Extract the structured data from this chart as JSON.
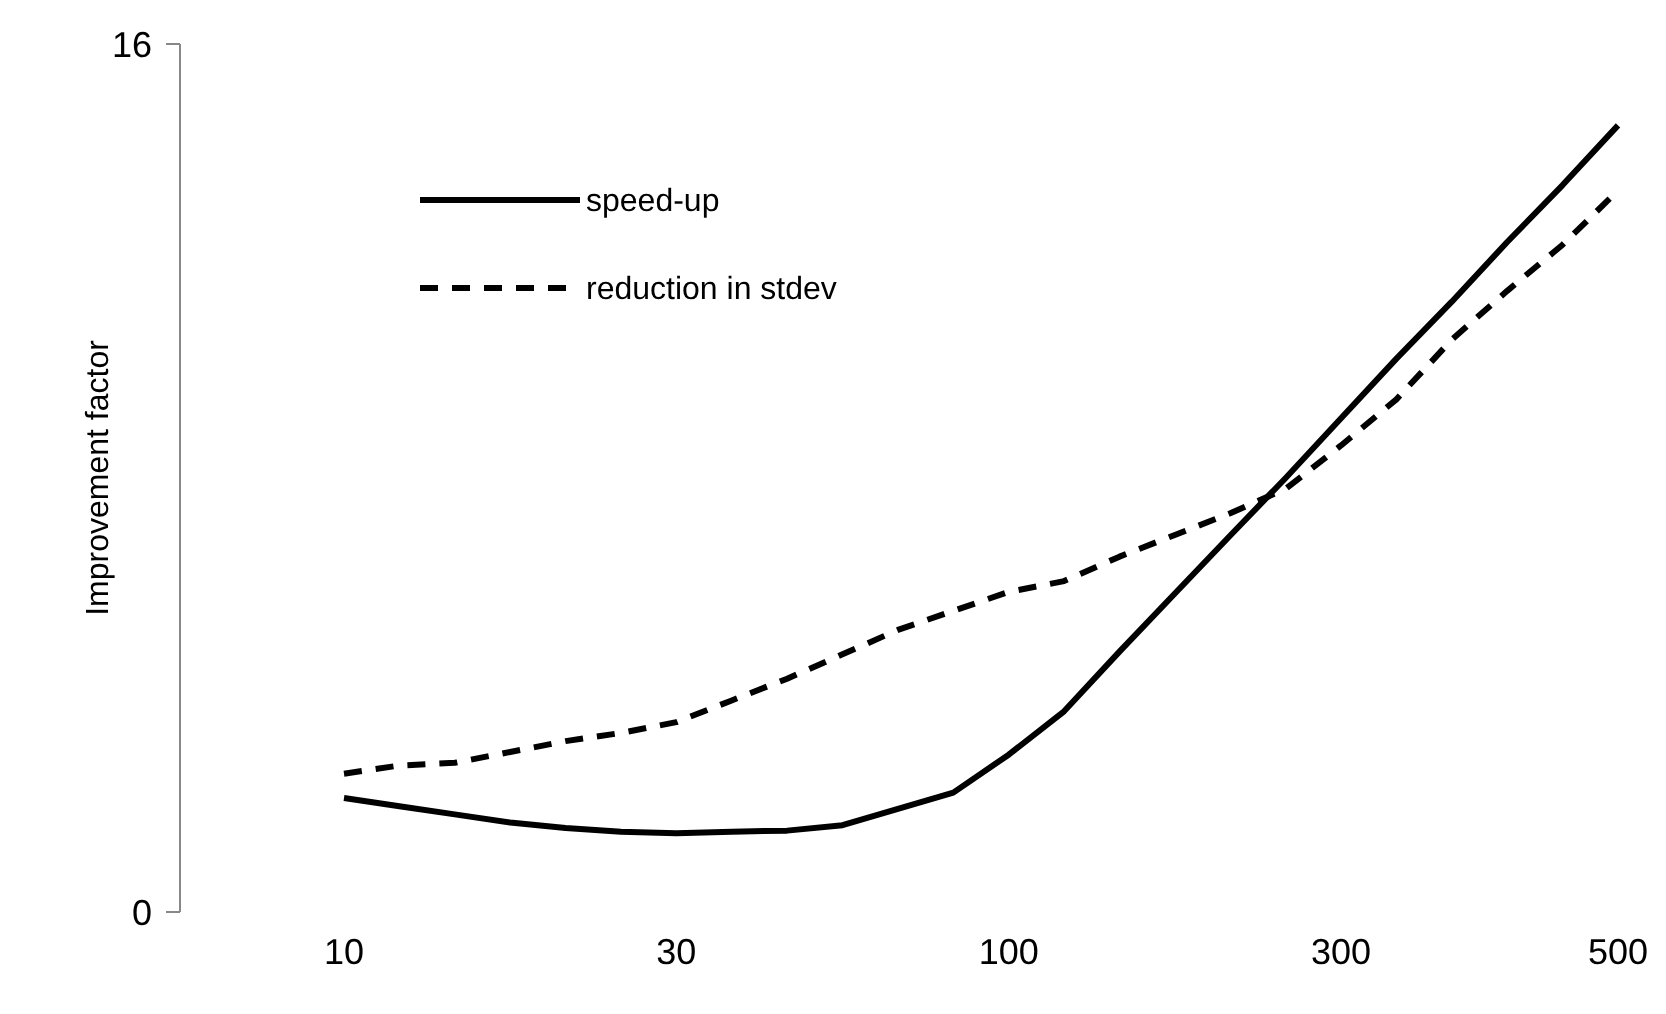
{
  "chart_data": {
    "type": "line",
    "ylabel": "Improvement factor",
    "categories": [
      "10",
      null,
      null,
      null,
      null,
      null,
      "30",
      null,
      null,
      null,
      null,
      null,
      "100",
      null,
      null,
      null,
      null,
      null,
      "300",
      null,
      null,
      null,
      null,
      "500"
    ],
    "ylim": [
      0,
      16
    ],
    "yticks": [
      0,
      16
    ],
    "grid": false,
    "legend": "top left",
    "marker": "none",
    "series": [
      {
        "name": "speed-up",
        "color": "#000000",
        "line_style": "solid",
        "values": [
          2.1,
          1.95,
          1.8,
          1.65,
          1.55,
          1.48,
          1.45,
          1.48,
          1.5,
          1.6,
          1.9,
          2.2,
          2.9,
          3.7,
          4.8,
          5.87,
          6.94,
          8.0,
          9.1,
          10.2,
          11.25,
          12.35,
          13.4,
          14.5
        ]
      },
      {
        "name": "reduction in stdev",
        "color": "#000000",
        "line_style": "dashed",
        "values": [
          2.55,
          2.7,
          2.75,
          2.95,
          3.15,
          3.3,
          3.5,
          3.9,
          4.3,
          4.75,
          5.2,
          5.55,
          5.9,
          6.1,
          6.55,
          6.95,
          7.35,
          7.8,
          8.6,
          9.45,
          10.55,
          11.45,
          12.3,
          13.3
        ]
      }
    ]
  }
}
